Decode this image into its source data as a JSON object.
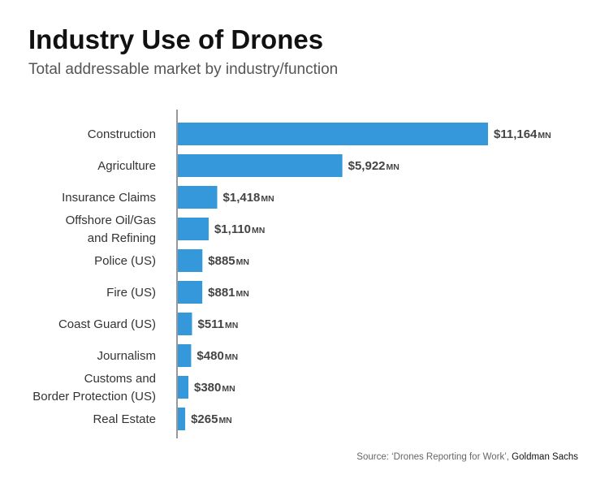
{
  "title": "Industry Use of Drones",
  "subtitle": "Total addressable market by industry/function",
  "source": {
    "prefix": "Source: ‘Drones Reporting for Work’, ",
    "publisher": "Goldman Sachs"
  },
  "chart_data": {
    "type": "bar",
    "orientation": "horizontal",
    "categories": [
      [
        "Construction"
      ],
      [
        "Agriculture"
      ],
      [
        "Insurance Claims"
      ],
      [
        "Offshore Oil/Gas",
        "and Refining"
      ],
      [
        "Police (US)"
      ],
      [
        "Fire (US)"
      ],
      [
        "Coast Guard (US)"
      ],
      [
        "Journalism"
      ],
      [
        "Customs and",
        "Border Protection (US)"
      ],
      [
        "Real Estate"
      ]
    ],
    "values": [
      11164,
      5922,
      1418,
      1110,
      885,
      881,
      511,
      480,
      380,
      265
    ],
    "value_labels": [
      "$11,164",
      "$5,922",
      "$1,418",
      "$1,110",
      "$885",
      "$881",
      "$511",
      "$480",
      "$380",
      "$265"
    ],
    "unit_suffix": "MN",
    "bar_color": "#3598db",
    "grid": false
  }
}
